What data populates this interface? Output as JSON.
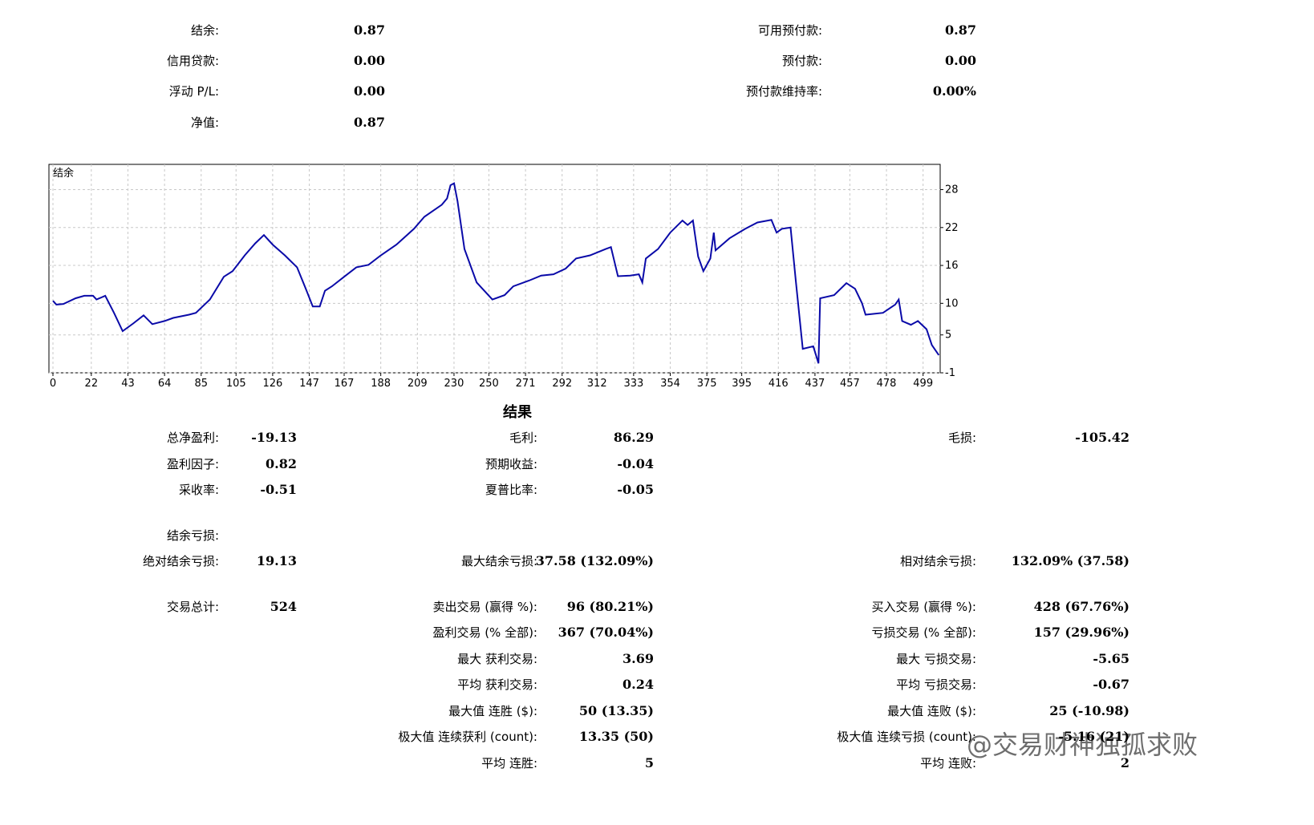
{
  "summary": {
    "left": [
      {
        "label": "结余:",
        "value": "0.87"
      },
      {
        "label": "信用贷款:",
        "value": "0.00"
      },
      {
        "label": "浮动 P/L:",
        "value": "0.00"
      },
      {
        "label": "净值:",
        "value": "0.87"
      }
    ],
    "right": [
      {
        "label": "可用预付款:",
        "value": "0.87"
      },
      {
        "label": "预付款:",
        "value": "0.00"
      },
      {
        "label": "预付款维持率:",
        "value": "0.00%"
      }
    ]
  },
  "chart_data": {
    "type": "line",
    "series": [
      {
        "name": "结余",
        "color": "#0a0aa8",
        "values": [
          10.4,
          9.8,
          9.9,
          10.8,
          11.2,
          11.2,
          10.6,
          11.2,
          8.5,
          5.6,
          6.8,
          8.1,
          6.7,
          7.2,
          7.7,
          8.2,
          8.5,
          10.6,
          14.2,
          15.1,
          17.6,
          19.5,
          20.8,
          19.3,
          17.6,
          15.7,
          12.3,
          9.5,
          9.5,
          12.0,
          12.7,
          14.2,
          15.7,
          16.1,
          17.6,
          19.3,
          21.8,
          23.7,
          25.6,
          26.6,
          28.7,
          29.0,
          26.2,
          18.6,
          13.3,
          10.6,
          11.3,
          12.7,
          13.6,
          14.4,
          14.6,
          15.5,
          17.1,
          17.6,
          18.6,
          18.9,
          14.3,
          14.4,
          14.6,
          13.3,
          17.1,
          18.6,
          21.2,
          23.1,
          22.4,
          23.1,
          17.4,
          15.1,
          17.1,
          21.2,
          18.4,
          20.3,
          21.8,
          22.8,
          23.2,
          21.2,
          21.8,
          22.0,
          13.6,
          2.8,
          3.2,
          0.5,
          10.8,
          11.3,
          13.2,
          12.3,
          10.0,
          8.2,
          8.5,
          9.8,
          10.6,
          7.2,
          6.6,
          7.2,
          5.9,
          3.4,
          1.8
        ]
      }
    ],
    "x": [
      0,
      2,
      6,
      13,
      18,
      23,
      25,
      30,
      35,
      40,
      46,
      52,
      57,
      64,
      69,
      78,
      82,
      90,
      98,
      103,
      110,
      116,
      121,
      126,
      133,
      140,
      145,
      149,
      153,
      156,
      160,
      167,
      174,
      181,
      188,
      197,
      207,
      213,
      223,
      226,
      228,
      230,
      232,
      236,
      243,
      252,
      259,
      264,
      273,
      280,
      287,
      294,
      300,
      308,
      317,
      320,
      324,
      331,
      336,
      338,
      340,
      347,
      354,
      361,
      364,
      367,
      370,
      373,
      377,
      379,
      380,
      388,
      397,
      404,
      412,
      415,
      418,
      423,
      426,
      430,
      436,
      439,
      440,
      448,
      455,
      460,
      464,
      466,
      476,
      483,
      485,
      487,
      492,
      496,
      501,
      504,
      508
    ],
    "xlim": [
      -2.3,
      508.8
    ],
    "xticks": [
      0,
      22,
      43,
      64,
      85,
      105,
      126,
      147,
      167,
      188,
      209,
      230,
      250,
      271,
      292,
      312,
      333,
      354,
      375,
      395,
      416,
      437,
      457,
      478,
      499
    ],
    "ylim": [
      -1,
      32
    ],
    "yticks": [
      -1,
      5,
      10,
      16,
      22,
      28
    ],
    "grid": true
  },
  "results": {
    "title": "结果",
    "rows": [
      [
        {
          "label": "总净盈利:",
          "value": "-19.13"
        },
        {
          "label": "毛利:",
          "value": "86.29"
        },
        {
          "label": "毛损:",
          "value": "-105.42"
        }
      ],
      [
        {
          "label": "盈利因子:",
          "value": "0.82"
        },
        {
          "label": "预期收益:",
          "value": "-0.04"
        },
        null
      ],
      [
        {
          "label": "采收率:",
          "value": "-0.51"
        },
        {
          "label": "夏普比率:",
          "value": "-0.05"
        },
        null
      ],
      [
        {
          "label": "结余亏损:"
        },
        null,
        null
      ],
      [
        {
          "label": "绝对结余亏损:",
          "value": "19.13"
        },
        {
          "label": "最大结余亏损:",
          "value": "37.58 (132.09%)"
        },
        {
          "label": "相对结余亏损:",
          "value": "132.09% (37.58)"
        }
      ],
      [
        {
          "label": "交易总计:",
          "value": "524"
        },
        {
          "label": "卖出交易 (赢得 %):",
          "value": "96 (80.21%)"
        },
        {
          "label": "买入交易 (赢得 %):",
          "value": "428 (67.76%)"
        }
      ],
      [
        null,
        {
          "label": "盈利交易 (% 全部):",
          "value": "367 (70.04%)"
        },
        {
          "label": "亏损交易 (% 全部):",
          "value": "157 (29.96%)"
        }
      ],
      [
        null,
        {
          "label": "最大 获利交易:",
          "value": "3.69"
        },
        {
          "label": "最大 亏损交易:",
          "value": "-5.65"
        }
      ],
      [
        null,
        {
          "label": "平均 获利交易:",
          "value": "0.24"
        },
        {
          "label": "平均 亏损交易:",
          "value": "-0.67"
        }
      ],
      [
        null,
        {
          "label": "最大值 连胜 ($):",
          "value": "50 (13.35)"
        },
        {
          "label": "最大值 连败 ($):",
          "value": "25 (-10.98)"
        }
      ],
      [
        null,
        {
          "label": "极大值 连续获利 (count):",
          "value": "13.35 (50)"
        },
        {
          "label": "极大值 连续亏损 (count):",
          "value": "-5.16 (21)"
        }
      ],
      [
        null,
        {
          "label": "平均 连胜:",
          "value": "5"
        },
        {
          "label": "平均 连败:",
          "value": "2"
        }
      ]
    ]
  },
  "watermark": "@交易财神独孤求败"
}
